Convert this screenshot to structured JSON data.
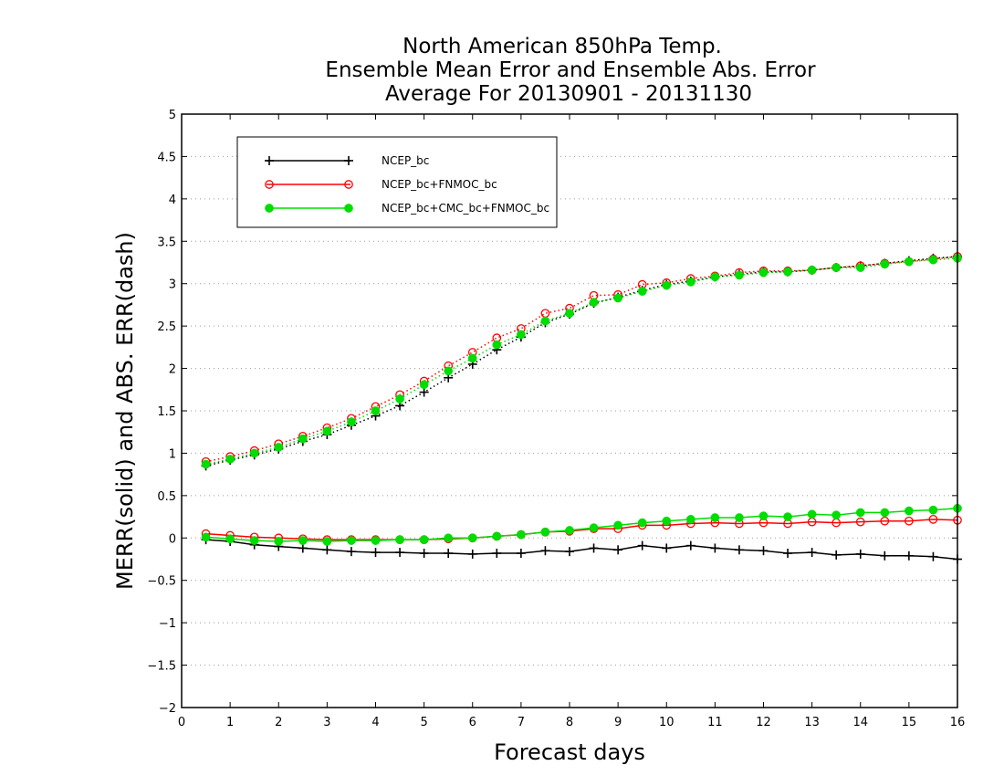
{
  "chart_data": {
    "type": "line",
    "title": [
      "North American 850hPa Temp.",
      "Ensemble Mean Error and Ensemble Abs. Error",
      "Average For 20130901 - 20131130"
    ],
    "xlabel": "Forecast days",
    "ylabel": "MERR(solid) and ABS. ERR(dash)",
    "xlim": [
      0,
      16
    ],
    "ylim": [
      -2,
      5
    ],
    "xticks": [
      "0",
      "1",
      "2",
      "3",
      "4",
      "5",
      "6",
      "7",
      "8",
      "9",
      "10",
      "11",
      "12",
      "13",
      "14",
      "15",
      "16"
    ],
    "yticks": [
      "−2",
      "−1.5",
      "−1",
      "−0.5",
      "0",
      "0.5",
      "1",
      "1.5",
      "2",
      "2.5",
      "3",
      "3.5",
      "4",
      "4.5",
      "5"
    ],
    "grid": true,
    "legend_position": "top-left",
    "x": [
      0.5,
      1,
      1.5,
      2,
      2.5,
      3,
      3.5,
      4,
      4.5,
      5,
      5.5,
      6,
      6.5,
      7,
      7.5,
      8,
      8.5,
      9,
      9.5,
      10,
      10.5,
      11,
      11.5,
      12,
      12.5,
      13,
      13.5,
      14,
      14.5,
      15,
      15.5,
      16
    ],
    "series": [
      {
        "name": "NCEP_bc",
        "color": "#000000",
        "marker": "plus",
        "merr": [
          -0.02,
          -0.04,
          -0.08,
          -0.1,
          -0.12,
          -0.14,
          -0.16,
          -0.17,
          -0.17,
          -0.18,
          -0.18,
          -0.19,
          -0.18,
          -0.18,
          -0.15,
          -0.16,
          -0.12,
          -0.14,
          -0.09,
          -0.12,
          -0.09,
          -0.12,
          -0.14,
          -0.15,
          -0.18,
          -0.17,
          -0.2,
          -0.19,
          -0.21,
          -0.21,
          -0.22,
          -0.25
        ],
        "abs_err": [
          0.85,
          0.92,
          0.98,
          1.05,
          1.14,
          1.22,
          1.33,
          1.44,
          1.56,
          1.72,
          1.89,
          2.05,
          2.22,
          2.37,
          2.54,
          2.64,
          2.77,
          2.84,
          2.92,
          2.99,
          3.03,
          3.08,
          3.11,
          3.14,
          3.14,
          3.16,
          3.19,
          3.21,
          3.24,
          3.27,
          3.3,
          3.32
        ]
      },
      {
        "name": "NCEP_bc+FNMOC_bc",
        "color": "#ff0000",
        "marker": "open-circle",
        "merr": [
          0.05,
          0.03,
          0.01,
          0.0,
          -0.01,
          -0.02,
          -0.02,
          -0.02,
          -0.02,
          -0.02,
          -0.01,
          0.0,
          0.02,
          0.04,
          0.07,
          0.08,
          0.11,
          0.11,
          0.15,
          0.15,
          0.17,
          0.18,
          0.17,
          0.18,
          0.17,
          0.19,
          0.18,
          0.19,
          0.2,
          0.2,
          0.22,
          0.21
        ],
        "abs_err": [
          0.9,
          0.96,
          1.03,
          1.11,
          1.2,
          1.3,
          1.41,
          1.55,
          1.69,
          1.85,
          2.03,
          2.19,
          2.36,
          2.47,
          2.65,
          2.71,
          2.86,
          2.87,
          2.99,
          3.01,
          3.06,
          3.09,
          3.13,
          3.15,
          3.15,
          3.16,
          3.19,
          3.21,
          3.24,
          3.26,
          3.29,
          3.32
        ]
      },
      {
        "name": "NCEP_bc+CMC_bc+FNMOC_bc",
        "color": "#00dd00",
        "marker": "filled-circle",
        "merr": [
          0.01,
          -0.01,
          -0.03,
          -0.04,
          -0.03,
          -0.04,
          -0.03,
          -0.03,
          -0.02,
          -0.02,
          0.0,
          0.0,
          0.02,
          0.04,
          0.07,
          0.09,
          0.12,
          0.15,
          0.18,
          0.2,
          0.22,
          0.24,
          0.24,
          0.26,
          0.25,
          0.28,
          0.27,
          0.3,
          0.3,
          0.32,
          0.33,
          0.35
        ],
        "abs_err": [
          0.87,
          0.93,
          1.0,
          1.07,
          1.17,
          1.26,
          1.37,
          1.5,
          1.64,
          1.81,
          1.97,
          2.12,
          2.28,
          2.4,
          2.56,
          2.65,
          2.78,
          2.83,
          2.91,
          2.98,
          3.02,
          3.08,
          3.1,
          3.13,
          3.14,
          3.16,
          3.19,
          3.19,
          3.23,
          3.26,
          3.28,
          3.3
        ]
      }
    ]
  }
}
